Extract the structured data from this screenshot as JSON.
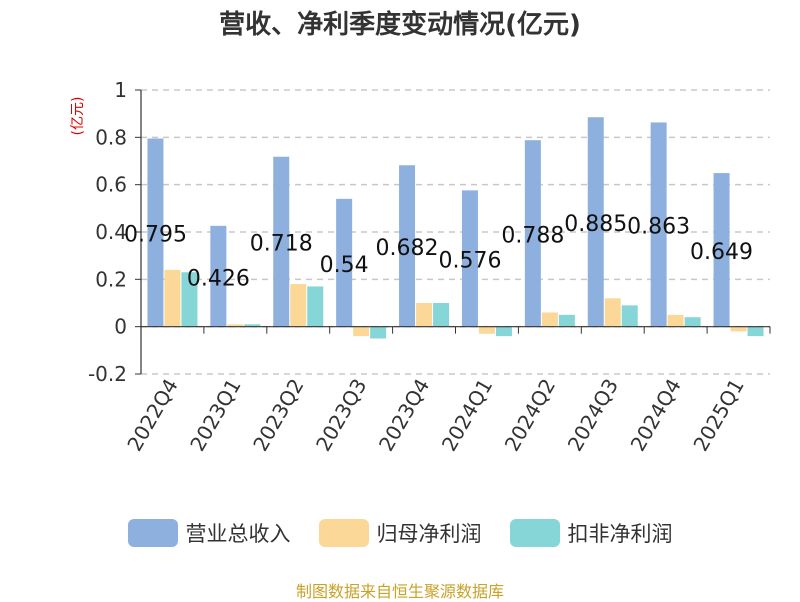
{
  "chart_data": {
    "type": "bar",
    "title": "营收、净利季度变动情况(亿元)",
    "ylabel": "(亿元)",
    "categories": [
      "2022Q4",
      "2023Q1",
      "2023Q2",
      "2023Q3",
      "2023Q4",
      "2024Q1",
      "2024Q2",
      "2024Q3",
      "2024Q4",
      "2025Q1"
    ],
    "series": [
      {
        "name": "营业总收入",
        "color": "#8eb0de",
        "values": [
          0.795,
          0.426,
          0.718,
          0.54,
          0.682,
          0.576,
          0.788,
          0.885,
          0.863,
          0.649
        ],
        "data_labels": [
          "0.795",
          "0.426",
          "0.718",
          "0.54",
          "0.682",
          "0.576",
          "0.788",
          "0.885",
          "0.863",
          "0.649"
        ]
      },
      {
        "name": "归母净利润",
        "color": "#fcd898",
        "values": [
          0.24,
          0.01,
          0.18,
          -0.04,
          0.1,
          -0.03,
          0.06,
          0.12,
          0.05,
          -0.02
        ]
      },
      {
        "name": "扣非净利润",
        "color": "#86d6d8",
        "values": [
          0.23,
          0.01,
          0.17,
          -0.05,
          0.1,
          -0.04,
          0.05,
          0.09,
          0.04,
          -0.04
        ]
      }
    ],
    "ylim": [
      -0.2,
      1
    ],
    "yticks": [
      "-0.2",
      "0",
      "0.2",
      "0.4",
      "0.6",
      "0.8",
      "1"
    ],
    "grid": true,
    "legend_position": "bottom"
  },
  "source": "制图数据来自恒生聚源数据库"
}
